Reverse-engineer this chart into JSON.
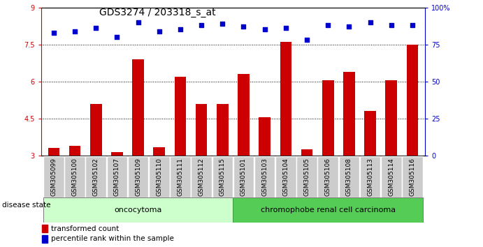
{
  "title": "GDS3274 / 203318_s_at",
  "samples": [
    "GSM305099",
    "GSM305100",
    "GSM305102",
    "GSM305107",
    "GSM305109",
    "GSM305110",
    "GSM305111",
    "GSM305112",
    "GSM305115",
    "GSM305101",
    "GSM305103",
    "GSM305104",
    "GSM305105",
    "GSM305106",
    "GSM305108",
    "GSM305113",
    "GSM305114",
    "GSM305116"
  ],
  "bar_values": [
    3.3,
    3.4,
    5.1,
    3.15,
    6.9,
    3.35,
    6.2,
    5.1,
    5.1,
    6.3,
    4.55,
    7.6,
    3.25,
    6.05,
    6.4,
    4.8,
    6.05,
    7.5
  ],
  "dot_values": [
    83,
    84,
    86,
    80,
    90,
    84,
    85,
    88,
    89,
    87,
    85,
    86,
    78,
    88,
    87,
    90,
    88,
    88
  ],
  "bar_color": "#cc0000",
  "dot_color": "#0000cc",
  "ylim_left": [
    3,
    9
  ],
  "ylim_right": [
    0,
    100
  ],
  "yticks_left": [
    3,
    4.5,
    6,
    7.5,
    9
  ],
  "ytick_labels_left": [
    "3",
    "4.5",
    "6",
    "7.5",
    "9"
  ],
  "yticks_right": [
    0,
    25,
    50,
    75,
    100
  ],
  "ytick_labels_right": [
    "0",
    "25",
    "50",
    "75",
    "100%"
  ],
  "grid_lines": [
    4.5,
    6.0,
    7.5
  ],
  "group1_label": "oncocytoma",
  "group2_label": "chromophobe renal cell carcinoma",
  "group1_count": 9,
  "group2_count": 9,
  "legend_bar_label": "transformed count",
  "legend_dot_label": "percentile rank within the sample",
  "disease_state_label": "disease state",
  "group1_color": "#ccffcc",
  "group2_color": "#55cc55",
  "bg_color": "#ffffff",
  "tick_label_bg": "#cccccc",
  "title_fontsize": 10,
  "tick_fontsize": 7,
  "label_fontsize": 6.5,
  "group_fontsize": 8
}
